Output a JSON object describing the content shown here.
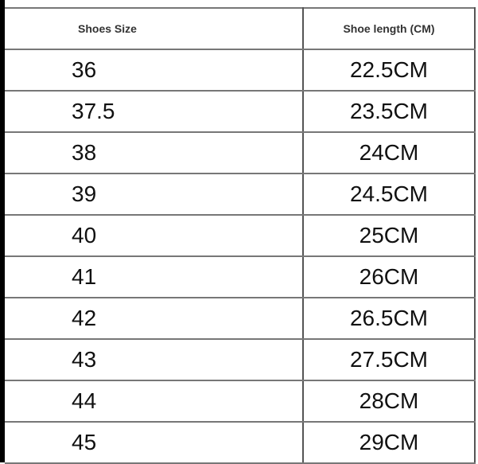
{
  "table": {
    "headers": [
      "Shoes Size",
      "Shoe length (CM)"
    ],
    "rows": [
      [
        "36",
        "22.5CM"
      ],
      [
        "37.5",
        "23.5CM"
      ],
      [
        "38",
        "24CM"
      ],
      [
        "39",
        "24.5CM"
      ],
      [
        "40",
        "25CM"
      ],
      [
        "41",
        "26CM"
      ],
      [
        "42",
        "26.5CM"
      ],
      [
        "43",
        "27.5CM"
      ],
      [
        "44",
        "28CM"
      ],
      [
        "45",
        "29CM"
      ]
    ]
  }
}
